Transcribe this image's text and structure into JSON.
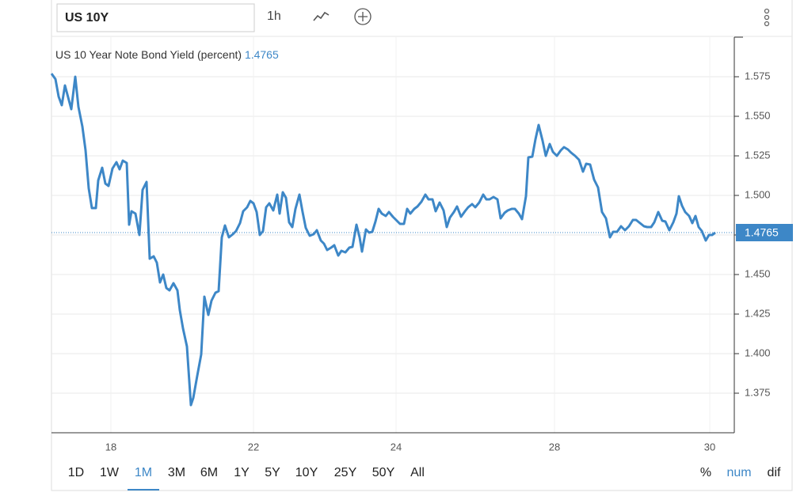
{
  "toolbar": {
    "symbol": "US 10Y",
    "interval": "1h"
  },
  "range_selector": [
    "1D",
    "1W",
    "1M",
    "3M",
    "6M",
    "1Y",
    "5Y",
    "10Y",
    "25Y",
    "50Y",
    "All"
  ],
  "range_selected": "1M",
  "display_modes": [
    "%",
    "num",
    "dif"
  ],
  "display_selected": "num",
  "chart_data": {
    "type": "line",
    "series": [
      {
        "name": "US 10 Year Note Bond Yield (percent)",
        "color": "#3d87c7",
        "values": [
          1.577,
          1.5735,
          1.5625,
          1.557,
          1.5695,
          1.562,
          1.5545,
          1.575,
          1.556,
          1.5435,
          1.5285,
          1.5045,
          1.492,
          1.492,
          1.5095,
          1.5175,
          1.5075,
          1.506,
          1.517,
          1.521,
          1.5165,
          1.522,
          1.5205,
          1.4815,
          1.49,
          1.4885,
          1.475,
          1.5035,
          1.5085,
          1.46,
          1.4615,
          1.4575,
          1.445,
          1.45,
          1.4415,
          1.44,
          1.4445,
          1.44,
          1.4275,
          1.416,
          1.4045,
          1.3675,
          1.372,
          1.386,
          1.3995,
          1.436,
          1.4245,
          1.4335,
          1.4385,
          1.4395,
          1.4735,
          1.481,
          1.4735,
          1.4755,
          1.4775,
          1.4825,
          1.49,
          1.4925,
          1.4965,
          1.495,
          1.4895,
          1.475,
          1.4775,
          1.4925,
          1.495,
          1.4905,
          1.5005,
          1.4885,
          1.502,
          1.4985,
          1.483,
          1.48,
          1.4915,
          1.5005,
          1.4895,
          1.4795,
          1.4745,
          1.4755,
          1.478,
          1.4715,
          1.4695,
          1.4655,
          1.467,
          1.4685,
          1.462,
          1.465,
          1.464,
          1.467,
          1.4675,
          1.4815,
          1.4735,
          1.4645,
          1.4785,
          1.4765,
          1.477,
          1.4835,
          1.4915,
          1.4885,
          1.487,
          1.4895,
          1.4865,
          1.4845,
          1.482,
          1.482,
          1.4915,
          1.4885,
          1.4915,
          1.493,
          1.496,
          1.5005,
          1.4975,
          1.4975,
          1.49,
          1.4955,
          1.4905,
          1.48,
          1.486,
          1.4895,
          1.493,
          1.4865,
          1.49,
          1.4925,
          1.4945,
          1.4925,
          1.4955,
          1.5005,
          1.4975,
          1.4975,
          1.499,
          1.4975,
          1.4855,
          1.489,
          1.4905,
          1.4915,
          1.4915,
          1.4885,
          1.485,
          1.4995,
          1.524,
          1.5245,
          1.5355,
          1.5445,
          1.5345,
          1.525,
          1.5325,
          1.5275,
          1.525,
          1.5285,
          1.5305,
          1.529,
          1.527,
          1.525,
          1.5225,
          1.515,
          1.52,
          1.5195,
          1.51,
          1.505,
          1.4895,
          1.4855,
          1.4735,
          1.477,
          1.477,
          1.4805,
          1.478,
          1.4805,
          1.4845,
          1.4845,
          1.4825,
          1.4805,
          1.48,
          1.48,
          1.483,
          1.4895,
          1.484,
          1.4835,
          1.478,
          1.483,
          1.4885,
          1.4995,
          1.4935,
          1.4895,
          1.487,
          1.4825,
          1.487,
          1.48,
          1.4775,
          1.4715,
          1.475,
          1.475,
          1.4765
        ]
      }
    ],
    "x": [
      0,
      5,
      9,
      13,
      17,
      21,
      25,
      30,
      34,
      39,
      43,
      47,
      51,
      56,
      59,
      64,
      68,
      72,
      77,
      82,
      86,
      90,
      95,
      98,
      101,
      106,
      111,
      115,
      120,
      124,
      129,
      133,
      137,
      141,
      145,
      149,
      154,
      159,
      162,
      166,
      171,
      176,
      179,
      184,
      189,
      193,
      198,
      202,
      207,
      211,
      215,
      219,
      224,
      229,
      233,
      238,
      242,
      247,
      251,
      255,
      259,
      263,
      267,
      271,
      275,
      280,
      285,
      288,
      292,
      296,
      300,
      304,
      308,
      313,
      317,
      321,
      326,
      331,
      335,
      340,
      344,
      348,
      353,
      357,
      362,
      366,
      371,
      376,
      380,
      385,
      389,
      392,
      397,
      401,
      405,
      409,
      413,
      417,
      422,
      426,
      431,
      435,
      440,
      445,
      449,
      453,
      458,
      462,
      467,
      472,
      476,
      481,
      485,
      490,
      495,
      499,
      503,
      508,
      512,
      517,
      522,
      526,
      531,
      535,
      540,
      545,
      549,
      553,
      558,
      563,
      567,
      572,
      576,
      581,
      585,
      590,
      594,
      599,
      602,
      607,
      611,
      615,
      620,
      624,
      629,
      633,
      638,
      643,
      647,
      652,
      656,
      661,
      666,
      671,
      675,
      680,
      685,
      690,
      695,
      700,
      705,
      709,
      714,
      719,
      724,
      729,
      734,
      738,
      743,
      748,
      752,
      757,
      761,
      766,
      771,
      775,
      780,
      785,
      789,
      792,
      796,
      800,
      805,
      809,
      813,
      817,
      821,
      826,
      830,
      834,
      838
    ],
    "last_value": 1.4765,
    "xlim": [
      0,
      862
    ],
    "xticks": [
      {
        "value": 75,
        "label": "18"
      },
      {
        "value": 255,
        "label": "22"
      },
      {
        "value": 435,
        "label": "24"
      },
      {
        "value": 635,
        "label": "28"
      },
      {
        "value": 831,
        "label": "30"
      }
    ],
    "ylim": [
      1.35,
      1.6
    ],
    "yticks": [
      1.375,
      {
        "value": 1.4,
        "label": "1.400"
      },
      1.425,
      {
        "value": 1.45,
        "label": "1.450"
      },
      1.475,
      {
        "value": 1.5,
        "label": "1.500"
      },
      1.525,
      {
        "value": 1.55,
        "label": "1.550"
      },
      1.575
    ],
    "grid": true
  }
}
